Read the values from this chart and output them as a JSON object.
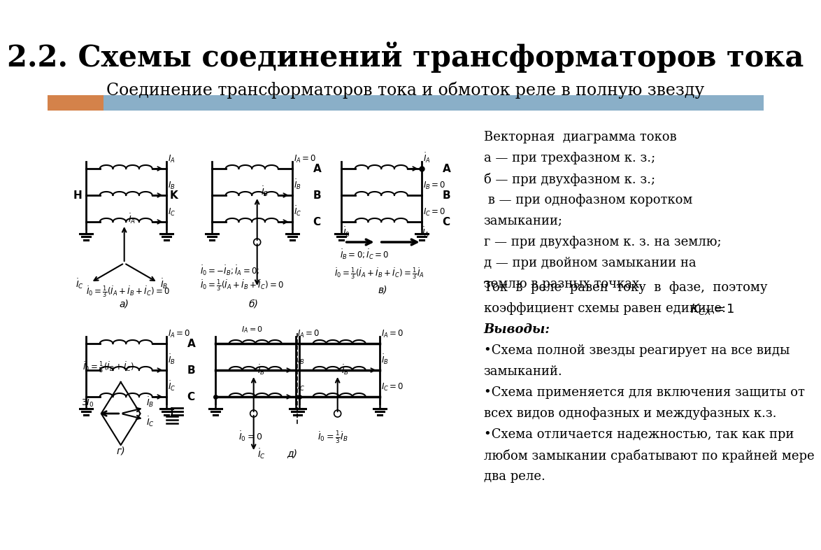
{
  "title": "2.2. Схемы соединений трансформаторов тока",
  "subtitle": "Соединение трансформаторов тока и обмоток реле в полную звезду",
  "title_fontsize": 30,
  "subtitle_fontsize": 17,
  "bg_color": "#ffffff",
  "orange_color": "#d4824a",
  "blue_color": "#8aafc8",
  "right_text_top_lines": [
    "Векторная  диаграмма токов",
    "а — при трехфазном к. з.;",
    "б — при двухфазном к. з.;",
    " в — при однофазном коротком",
    "замыкании;",
    "г — при двухфазном к. з. на землю;",
    "д — при двойном замыкании на",
    "землю в разных точках."
  ],
  "right_text_bottom_lines": [
    "Ток  в  реле  равен  току  в  фазе,  поэтому",
    "коэффициент схемы равен единице: КСХ = 1.",
    "Выводы:",
    "•Схема полной звезды реагирует на все виды",
    "замыканий.",
    "•Схема применяется для включения защиты от",
    "всех видов однофазных и междуфазных к.з.",
    "•Схема отличается надежностью, так как при",
    "любом замыкании срабатывают по крайней мере",
    "два реле."
  ]
}
